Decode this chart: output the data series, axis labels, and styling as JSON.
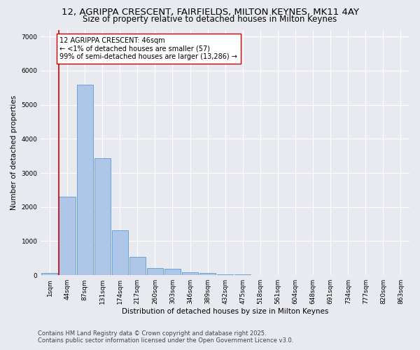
{
  "title_line1": "12, AGRIPPA CRESCENT, FAIRFIELDS, MILTON KEYNES, MK11 4AY",
  "title_line2": "Size of property relative to detached houses in Milton Keynes",
  "xlabel": "Distribution of detached houses by size in Milton Keynes",
  "ylabel": "Number of detached properties",
  "categories": [
    "1sqm",
    "44sqm",
    "87sqm",
    "131sqm",
    "174sqm",
    "217sqm",
    "260sqm",
    "303sqm",
    "346sqm",
    "389sqm",
    "432sqm",
    "475sqm",
    "518sqm",
    "561sqm",
    "604sqm",
    "648sqm",
    "691sqm",
    "734sqm",
    "777sqm",
    "820sqm",
    "863sqm"
  ],
  "values": [
    57,
    2300,
    5580,
    3440,
    1320,
    530,
    215,
    190,
    90,
    60,
    30,
    20,
    5,
    5,
    3,
    2,
    1,
    1,
    0,
    0,
    0
  ],
  "bar_color": "#aec6e8",
  "bar_edge_color": "#5b9bd5",
  "highlight_color": "#cc0000",
  "annotation_text": "12 AGRIPPA CRESCENT: 46sqm\n← <1% of detached houses are smaller (57)\n99% of semi-detached houses are larger (13,286) →",
  "annotation_box_color": "white",
  "annotation_box_edge_color": "#cc0000",
  "ylim": [
    0,
    7200
  ],
  "yticks": [
    0,
    1000,
    2000,
    3000,
    4000,
    5000,
    6000,
    7000
  ],
  "background_color": "#e8eaf0",
  "grid_color": "white",
  "footer_line1": "Contains HM Land Registry data © Crown copyright and database right 2025.",
  "footer_line2": "Contains public sector information licensed under the Open Government Licence v3.0.",
  "title_fontsize": 9.5,
  "subtitle_fontsize": 8.5,
  "axis_label_fontsize": 7.5,
  "tick_fontsize": 6.5,
  "annotation_fontsize": 7,
  "footer_fontsize": 6
}
